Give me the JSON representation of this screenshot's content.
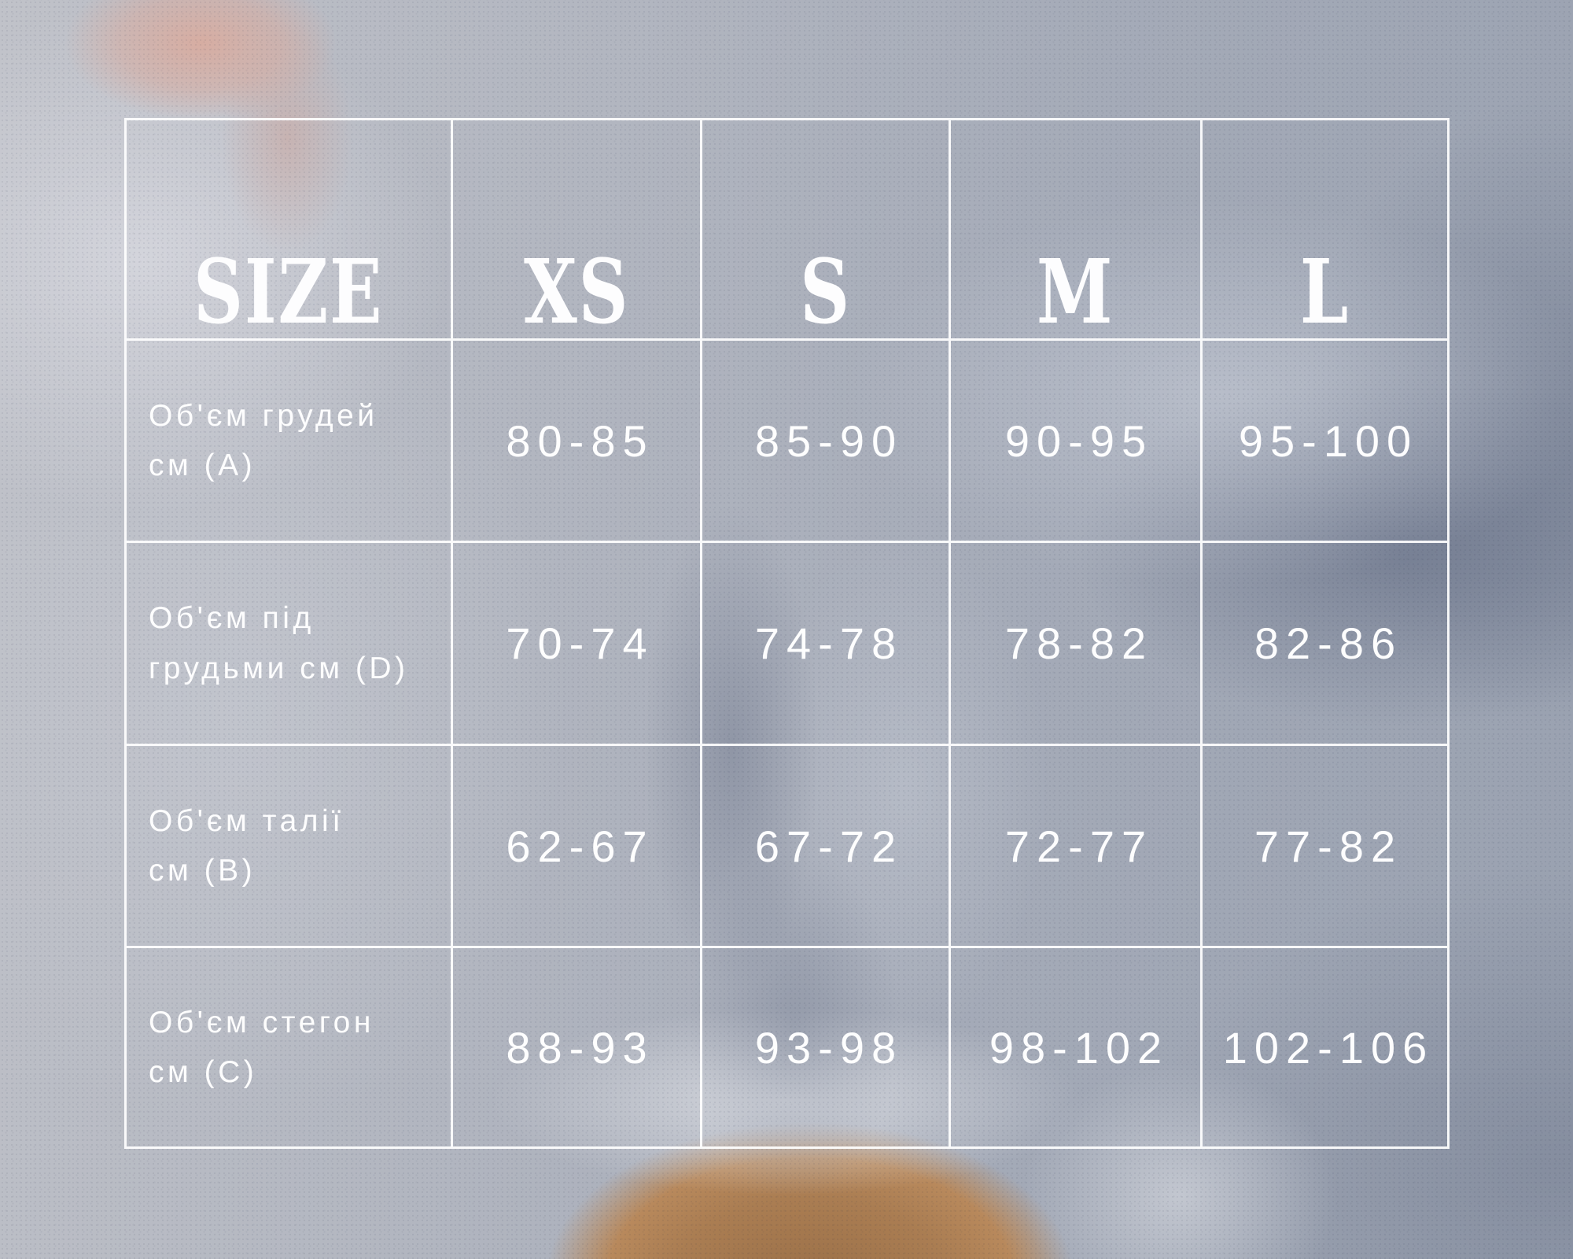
{
  "chart_data": {
    "type": "table",
    "title": "SIZE",
    "columns": [
      "SIZE",
      "XS",
      "S",
      "M",
      "L"
    ],
    "rows": [
      {
        "label": "Об'єм грудей см (А)",
        "label_line1": "Об'єм грудей",
        "label_line2": "см (А)",
        "values": [
          "80-85",
          "85-90",
          "90-95",
          "95-100"
        ]
      },
      {
        "label": "Об'єм під грудьми см (D)",
        "label_line1": "Об'єм під",
        "label_line2": "грудьми см (D)",
        "values": [
          "70-74",
          "74-78",
          "78-82",
          "82-86"
        ]
      },
      {
        "label": "Об'єм талії см (В)",
        "label_line1": "Об'єм талії",
        "label_line2": "см (В)",
        "values": [
          "62-67",
          "67-72",
          "72-77",
          "77-82"
        ]
      },
      {
        "label": "Об'єм стегон см (С)",
        "label_line1": "Об'єм стегон",
        "label_line2": "см (С)",
        "values": [
          "88-93",
          "93-98",
          "98-102",
          "102-106"
        ]
      }
    ],
    "units": "см",
    "layout_hints": {
      "grid": "on",
      "header_position": "top-row",
      "label_column_position": "left"
    }
  },
  "colors": {
    "grid_lines": "#ffffff",
    "text": "#ffffff",
    "background_base": "#a9aeb9",
    "background_light": "#c6c7cd",
    "background_shadow": "#6f7a94",
    "skin_tone": "#aa7d52",
    "pink_accent": "#d8aca0"
  }
}
